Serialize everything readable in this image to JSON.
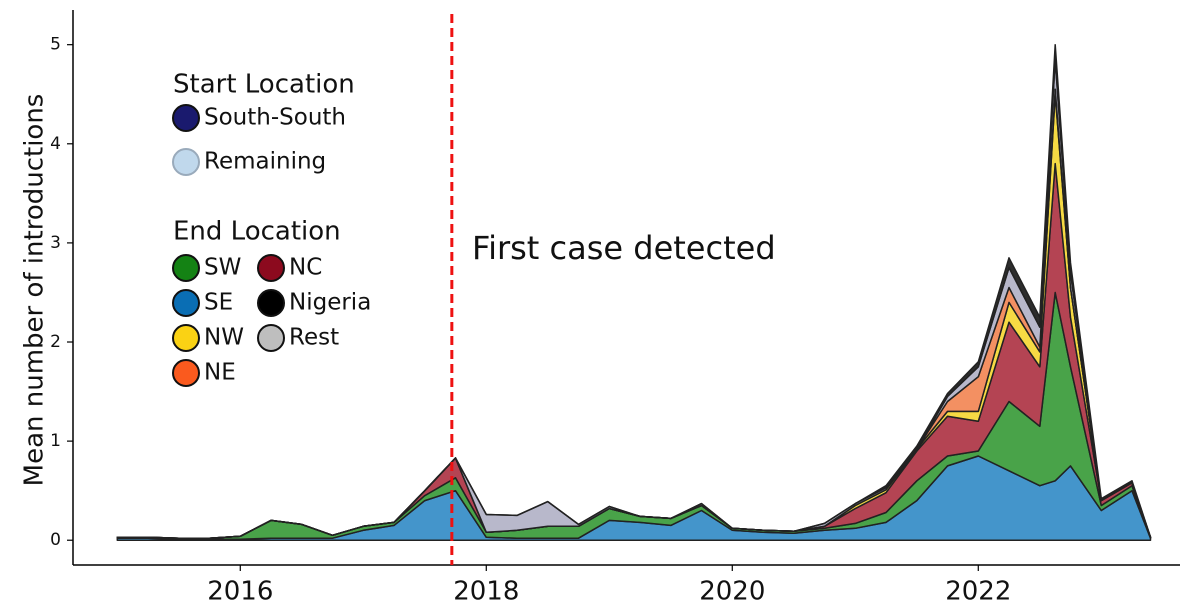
{
  "chart_data": {
    "type": "stacked_area",
    "ylabel": "Mean number of introductions",
    "annotation": "First case detected",
    "vline": 2017.72,
    "vline_color": "#ee1111",
    "xlim": [
      2014.64,
      23.64
    ],
    "ylim": [
      -0.25,
      5.35
    ],
    "xticks": [
      2016,
      2018,
      2020,
      2022
    ],
    "yticks": [
      0,
      1,
      2,
      3,
      4,
      5
    ],
    "x": [
      2015.0,
      2015.25,
      2015.5,
      2015.75,
      2016.0,
      2016.25,
      2016.5,
      2016.75,
      2017.0,
      2017.25,
      2017.5,
      2017.75,
      2018.0,
      2018.25,
      2018.5,
      2018.75,
      2019.0,
      2019.25,
      2019.5,
      2019.75,
      2020.0,
      2020.25,
      2020.5,
      2020.75,
      2021.0,
      2021.25,
      2021.5,
      2021.75,
      2022.0,
      2022.25,
      2022.5,
      2022.625,
      2022.75,
      2023.0,
      2023.25,
      2023.4
    ],
    "series": [
      {
        "name": "SE",
        "color": "#3a8fc8",
        "values": [
          0.02,
          0.02,
          0.01,
          0.01,
          0.01,
          0.02,
          0.02,
          0.02,
          0.1,
          0.15,
          0.4,
          0.5,
          0.03,
          0.02,
          0.02,
          0.02,
          0.2,
          0.18,
          0.15,
          0.3,
          0.1,
          0.08,
          0.07,
          0.1,
          0.12,
          0.18,
          0.4,
          0.75,
          0.85,
          0.7,
          0.55,
          0.6,
          0.75,
          0.3,
          0.5,
          0.02
        ]
      },
      {
        "name": "SW",
        "color": "#3f9e3f",
        "values": [
          0.01,
          0.01,
          0.01,
          0.01,
          0.03,
          0.18,
          0.14,
          0.03,
          0.04,
          0.03,
          0.05,
          0.13,
          0.05,
          0.08,
          0.12,
          0.12,
          0.12,
          0.06,
          0.07,
          0.05,
          0.02,
          0.02,
          0.02,
          0.02,
          0.05,
          0.1,
          0.2,
          0.1,
          0.05,
          0.7,
          0.6,
          1.9,
          1.0,
          0.05,
          0.05,
          0.01
        ]
      },
      {
        "name": "NC",
        "color": "#b03a4a",
        "values": [
          0,
          0,
          0,
          0,
          0,
          0,
          0,
          0,
          0,
          0,
          0.05,
          0.2,
          0,
          0,
          0,
          0,
          0,
          0,
          0,
          0,
          0,
          0,
          0,
          0.02,
          0.15,
          0.2,
          0.3,
          0.4,
          0.3,
          0.8,
          0.6,
          1.3,
          0.5,
          0.05,
          0.03,
          0
        ]
      },
      {
        "name": "NW",
        "color": "#f5d83a",
        "values": [
          0,
          0,
          0,
          0,
          0,
          0,
          0,
          0,
          0,
          0,
          0,
          0,
          0,
          0,
          0,
          0,
          0,
          0,
          0,
          0,
          0,
          0,
          0,
          0,
          0.03,
          0.03,
          0.02,
          0.05,
          0.1,
          0.2,
          0.15,
          0.7,
          0.3,
          0,
          0,
          0
        ]
      },
      {
        "name": "NE",
        "color": "#f28a5a",
        "values": [
          0,
          0,
          0,
          0,
          0,
          0,
          0,
          0,
          0,
          0,
          0,
          0,
          0,
          0,
          0,
          0,
          0,
          0,
          0,
          0,
          0,
          0,
          0,
          0,
          0,
          0,
          0,
          0.1,
          0.35,
          0.15,
          0.05,
          0.05,
          0,
          0,
          0,
          0
        ]
      },
      {
        "name": "Rest",
        "color": "#b4b4c8",
        "values": [
          0,
          0,
          0,
          0,
          0,
          0,
          0,
          0,
          0,
          0,
          0,
          0,
          0.18,
          0.15,
          0.25,
          0.02,
          0.02,
          0,
          0,
          0.02,
          0,
          0,
          0,
          0.03,
          0.02,
          0.02,
          0,
          0.05,
          0.1,
          0.2,
          0.2,
          0.3,
          0.15,
          0,
          0,
          0
        ]
      },
      {
        "name": "Nigeria",
        "color": "#222222",
        "values": [
          0,
          0,
          0,
          0,
          0,
          0,
          0,
          0,
          0,
          0,
          0,
          0,
          0,
          0,
          0,
          0,
          0,
          0,
          0,
          0,
          0,
          0,
          0,
          0,
          0,
          0.02,
          0.03,
          0.03,
          0.05,
          0.1,
          0.1,
          0.15,
          0.1,
          0.02,
          0.02,
          0
        ]
      }
    ],
    "legend_start_title": "Start Location",
    "legend_start": [
      {
        "name": "South-South",
        "color": "#1a1a6e"
      },
      {
        "name": "Remaining",
        "color": "#c0d8ec"
      }
    ],
    "legend_end_title": "End Location",
    "legend_end": [
      {
        "name": "SW",
        "color": "#148214"
      },
      {
        "name": "NC",
        "color": "#8c0a1e"
      },
      {
        "name": "SE",
        "color": "#0a6eb4"
      },
      {
        "name": "Nigeria",
        "color": "#000000"
      },
      {
        "name": "NW",
        "color": "#fad214"
      },
      {
        "name": "Rest",
        "color": "#bebebe"
      },
      {
        "name": "NE",
        "color": "#fa5a1e"
      }
    ]
  }
}
